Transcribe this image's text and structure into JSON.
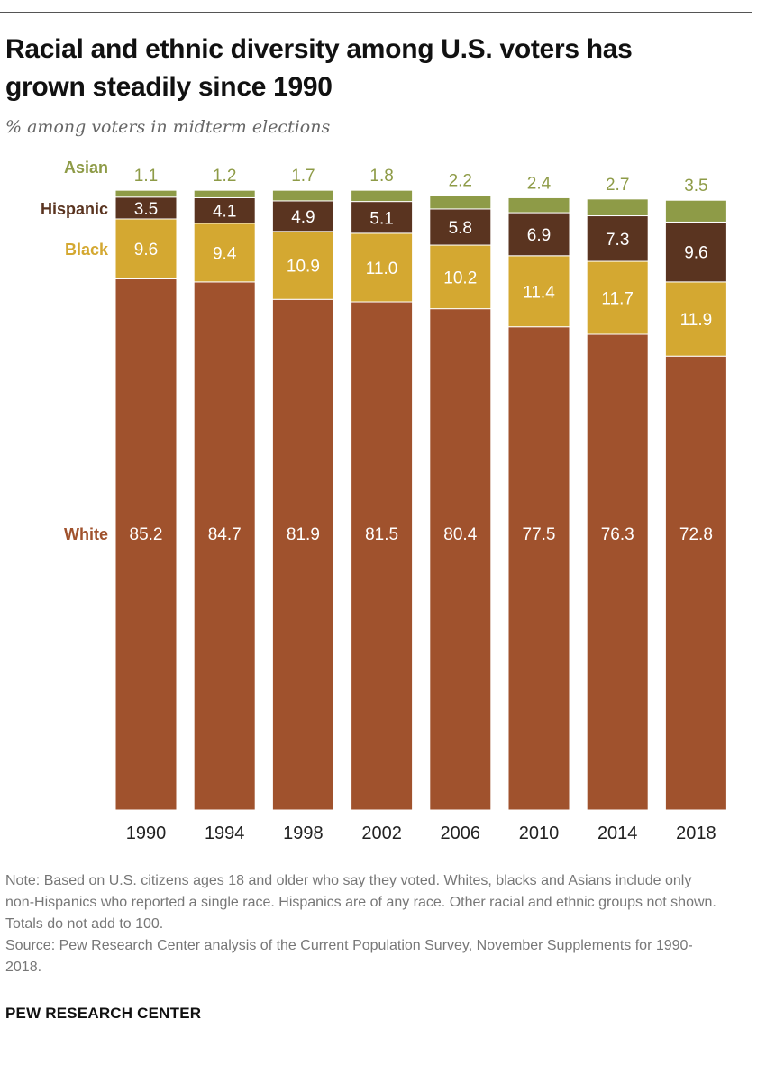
{
  "title": "Racial and ethnic diversity among U.S. voters has grown steadily since 1990",
  "subtitle": "% among voters in midterm elections",
  "chart_data": {
    "type": "bar",
    "stacked": true,
    "categories": [
      "1990",
      "1994",
      "1998",
      "2002",
      "2006",
      "2010",
      "2014",
      "2018"
    ],
    "series": [
      {
        "name": "White",
        "color": "#A0522D",
        "label_color": "#ffffff",
        "values": [
          85.2,
          84.7,
          81.9,
          81.5,
          80.4,
          77.5,
          76.3,
          72.8
        ],
        "labels": [
          "85.2",
          "84.7",
          "81.9",
          "81.5",
          "80.4",
          "77.5",
          "76.3",
          "72.8"
        ]
      },
      {
        "name": "Black",
        "color": "#D4A831",
        "label_color": "#ffffff",
        "values": [
          9.6,
          9.4,
          10.9,
          11.0,
          10.2,
          11.4,
          11.7,
          11.9
        ],
        "labels": [
          "9.6",
          "9.4",
          "10.9",
          "11.0",
          "10.2",
          "11.4",
          "11.7",
          "11.9"
        ]
      },
      {
        "name": "Hispanic",
        "color": "#5A3420",
        "label_color": "#ffffff",
        "values": [
          3.5,
          4.1,
          4.9,
          5.1,
          5.8,
          6.9,
          7.3,
          9.6
        ],
        "labels": [
          "3.5",
          "4.1",
          "4.9",
          "5.1",
          "5.8",
          "6.9",
          "7.3",
          "9.6"
        ]
      },
      {
        "name": "Asian",
        "color": "#8E9B47",
        "label_color": "#8E9B47",
        "values": [
          1.1,
          1.2,
          1.7,
          1.8,
          2.2,
          2.4,
          2.7,
          3.5
        ],
        "labels": [
          "1.1",
          "1.2",
          "1.7",
          "1.8",
          "2.2",
          "2.4",
          "2.7",
          "3.5"
        ]
      }
    ],
    "legend_colors": {
      "White": "#A0522D",
      "Black": "#D4A831",
      "Hispanic": "#5A3420",
      "Asian": "#8E9B47"
    },
    "ylim": [
      0,
      100
    ],
    "grid": false,
    "legend_placement": "left, beside first bar"
  },
  "footer": {
    "note": "Note: Based on U.S. citizens ages 18 and older who say they voted. Whites, blacks and Asians include only non-Hispanics who reported a single race. Hispanics are of any race. Other racial and ethnic groups not shown. Totals do not add to 100.",
    "source": "Source: Pew Research Center analysis of the Current Population Survey, November Supplements for 1990-2018.",
    "brand": "PEW RESEARCH CENTER"
  }
}
